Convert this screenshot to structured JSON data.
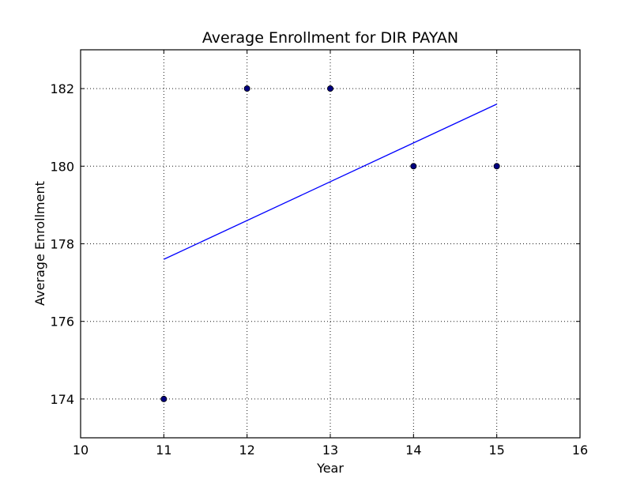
{
  "chart_data": {
    "type": "scatter",
    "title": "Average Enrollment for DIR PAYAN",
    "xlabel": "Year",
    "ylabel": "Average Enrollment",
    "xlim": [
      10,
      16
    ],
    "ylim": [
      173,
      183
    ],
    "xticks": [
      "10",
      "11",
      "12",
      "13",
      "14",
      "15",
      "16"
    ],
    "yticks": [
      "174",
      "176",
      "178",
      "180",
      "182"
    ],
    "grid": true,
    "colors": {
      "points": "#00007f",
      "fit_line": "#0000ff"
    },
    "series": [
      {
        "type": "scatter",
        "x": [
          11,
          12,
          13,
          14,
          15
        ],
        "y": [
          174,
          182,
          182,
          180,
          180
        ]
      },
      {
        "type": "line",
        "x": [
          11,
          15
        ],
        "y": [
          177.6,
          181.6
        ]
      }
    ]
  }
}
